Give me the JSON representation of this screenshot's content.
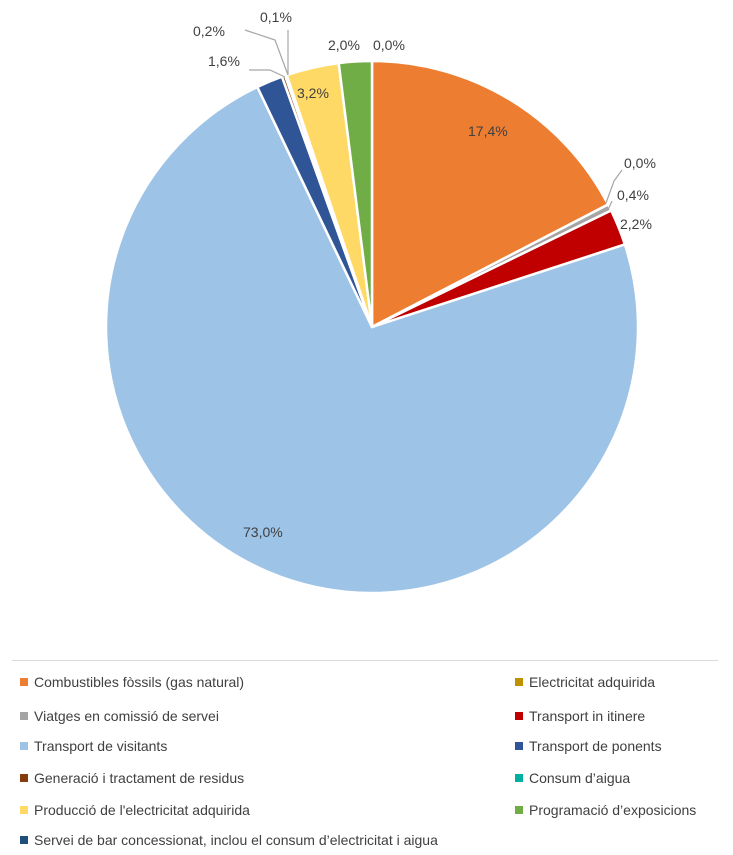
{
  "chart_data": {
    "type": "pie",
    "slices": [
      {
        "name": "Combustibles fòssils (gas natural)",
        "value": 17.4,
        "label": "17,4%",
        "color": "#ed7d31"
      },
      {
        "name": "Electricitat adquirida",
        "value": 0.0,
        "label": "0,0%",
        "color": "#bf9000"
      },
      {
        "name": "Viatges en comissió de servei",
        "value": 0.4,
        "label": "0,4%",
        "color": "#a5a5a5"
      },
      {
        "name": "Transport in itinere",
        "value": 2.2,
        "label": "2,2%",
        "color": "#c00000"
      },
      {
        "name": "Transport de visitants",
        "value": 73.0,
        "label": "73,0%",
        "color": "#9dc3e6"
      },
      {
        "name": "Transport de ponents",
        "value": 1.6,
        "label": "1,6%",
        "color": "#2f5597"
      },
      {
        "name": "Generació i tractament de residus",
        "value": 0.2,
        "label": "0,2%",
        "color": "#843c0c"
      },
      {
        "name": "Consum d’aigua",
        "value": 0.1,
        "label": "0,1%",
        "color": "#00b0a0"
      },
      {
        "name": "Producció de l'electricitat adquirida",
        "value": 3.2,
        "label": "3,2%",
        "color": "#ffd966"
      },
      {
        "name": "Programació d’exposicions",
        "value": 2.0,
        "label": "2,0%",
        "color": "#70ad47"
      },
      {
        "name": "Servei de bar concessionat, inclou el consum d’electricitat i aigua",
        "value": 0.0,
        "label": "0,0%",
        "color": "#1f4e79"
      }
    ],
    "legend_position": "bottom"
  }
}
